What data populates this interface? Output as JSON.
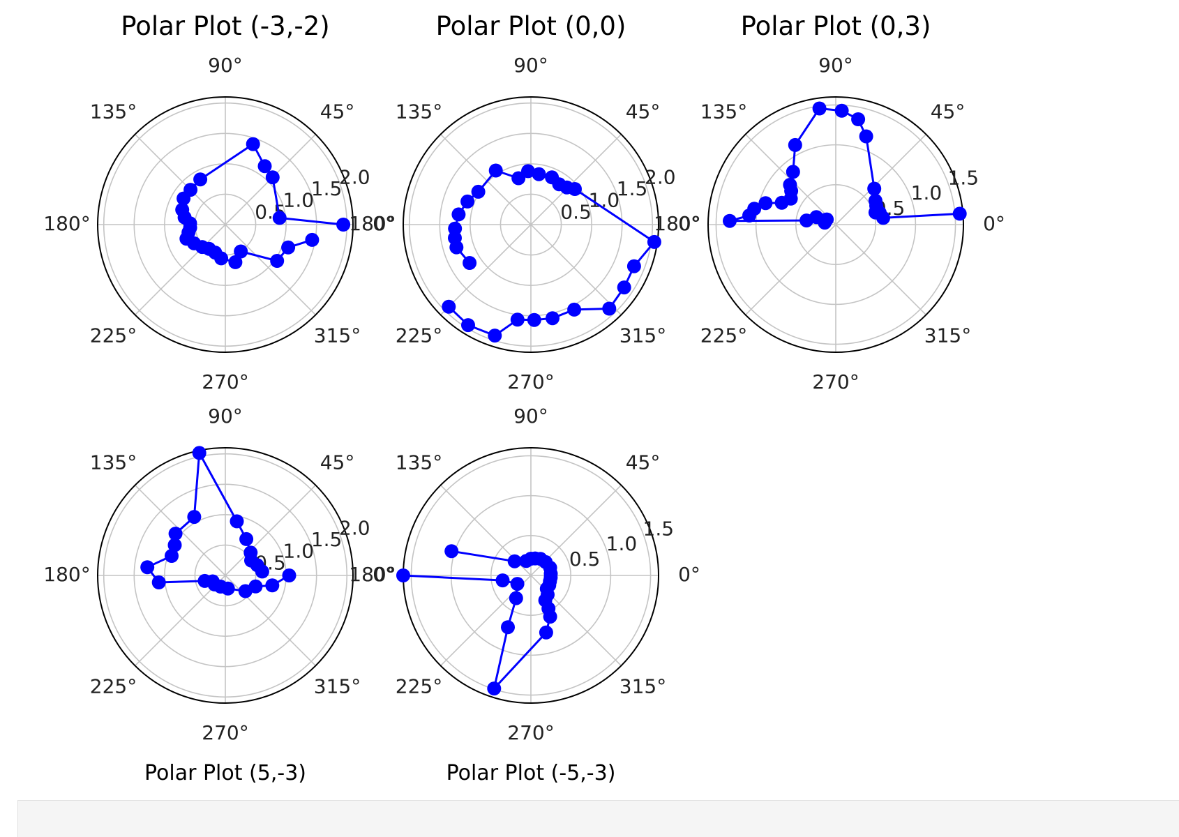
{
  "colors": {
    "series": "#0000ff",
    "grid": "#c4c4c4",
    "spine": "#000000"
  },
  "chart_data": [
    {
      "type": "scatter",
      "title": "Polar Plot (-3,-2)",
      "title_position": "top",
      "angle_ticks": [
        "0°",
        "45°",
        "90°",
        "135°",
        "180°",
        "225°",
        "270°",
        "315°"
      ],
      "radial_ticks": [
        "0.5",
        "1.0",
        "1.5",
        "2.0"
      ],
      "rlim": [
        0,
        2.1
      ],
      "points": [
        {
          "theta": 0,
          "r": 1.94
        },
        {
          "theta": 7,
          "r": 0.9
        },
        {
          "theta": 45,
          "r": 1.1
        },
        {
          "theta": 56,
          "r": 1.16
        },
        {
          "theta": 71,
          "r": 1.4
        },
        {
          "theta": 119,
          "r": 0.85
        },
        {
          "theta": 135,
          "r": 0.81
        },
        {
          "theta": 148,
          "r": 0.81
        },
        {
          "theta": 161,
          "r": 0.75
        },
        {
          "theta": 170,
          "r": 0.68
        },
        {
          "theta": 178,
          "r": 0.58
        },
        {
          "theta": 185,
          "r": 0.58
        },
        {
          "theta": 192,
          "r": 0.62
        },
        {
          "theta": 200,
          "r": 0.68
        },
        {
          "theta": 211,
          "r": 0.6
        },
        {
          "theta": 224,
          "r": 0.53
        },
        {
          "theta": 236,
          "r": 0.48
        },
        {
          "theta": 250,
          "r": 0.49
        },
        {
          "theta": 263,
          "r": 0.56
        },
        {
          "theta": 285,
          "r": 0.64
        },
        {
          "theta": 300,
          "r": 0.51
        },
        {
          "theta": 325,
          "r": 1.04
        },
        {
          "theta": 340,
          "r": 1.1
        },
        {
          "theta": 350,
          "r": 1.45
        }
      ]
    },
    {
      "type": "scatter",
      "title": "Polar Plot (0,0)",
      "title_position": "top",
      "angle_ticks": [
        "0°",
        "45°",
        "90°",
        "135°",
        "180°",
        "225°",
        "270°",
        "315°"
      ],
      "radial_ticks": [
        "0.5",
        "1.0",
        "1.5",
        "2.0"
      ],
      "rlim": [
        0,
        2.1
      ],
      "points": [
        {
          "theta": 225,
          "r": 1.91
        },
        {
          "theta": 238,
          "r": 1.95
        },
        {
          "theta": 252,
          "r": 1.92
        },
        {
          "theta": 262,
          "r": 1.58
        },
        {
          "theta": 272,
          "r": 1.57
        },
        {
          "theta": 283,
          "r": 1.58
        },
        {
          "theta": 297,
          "r": 1.57
        },
        {
          "theta": 313,
          "r": 1.89
        },
        {
          "theta": 326,
          "r": 1.85
        },
        {
          "theta": 338,
          "r": 1.83
        },
        {
          "theta": 352,
          "r": 2.05
        },
        {
          "theta": 39,
          "r": 0.93
        },
        {
          "theta": 46,
          "r": 0.85
        },
        {
          "theta": 55,
          "r": 0.81
        },
        {
          "theta": 66,
          "r": 0.85
        },
        {
          "theta": 81,
          "r": 0.84
        },
        {
          "theta": 93,
          "r": 0.88
        },
        {
          "theta": 105,
          "r": 0.79
        },
        {
          "theta": 123,
          "r": 1.06
        },
        {
          "theta": 148,
          "r": 1.02
        },
        {
          "theta": 160,
          "r": 1.11
        },
        {
          "theta": 172,
          "r": 1.2
        },
        {
          "theta": 183,
          "r": 1.25
        },
        {
          "theta": 190,
          "r": 1.27
        },
        {
          "theta": 197,
          "r": 1.28
        },
        {
          "theta": 212,
          "r": 1.19
        }
      ]
    },
    {
      "type": "scatter",
      "title": "Polar Plot (0,3)",
      "title_position": "top",
      "angle_ticks": [
        "0°",
        "45°",
        "90°",
        "135°",
        "180°",
        "225°",
        "270°",
        "315°"
      ],
      "radial_ticks": [
        "0.5",
        "1.0",
        "1.5"
      ],
      "rlim": [
        0,
        1.6
      ],
      "points": [
        {
          "theta": 5,
          "r": 1.56
        },
        {
          "theta": 8,
          "r": 0.6
        },
        {
          "theta": 15,
          "r": 0.57
        },
        {
          "theta": 17,
          "r": 0.52
        },
        {
          "theta": 25,
          "r": 0.56
        },
        {
          "theta": 31,
          "r": 0.58
        },
        {
          "theta": 43,
          "r": 0.66
        },
        {
          "theta": 71,
          "r": 1.17
        },
        {
          "theta": 78,
          "r": 1.35
        },
        {
          "theta": 87,
          "r": 1.43
        },
        {
          "theta": 98,
          "r": 1.47
        },
        {
          "theta": 117,
          "r": 1.12
        },
        {
          "theta": 129,
          "r": 0.85
        },
        {
          "theta": 139,
          "r": 0.76
        },
        {
          "theta": 143,
          "r": 0.7
        },
        {
          "theta": 150,
          "r": 0.65
        },
        {
          "theta": 158,
          "r": 0.73
        },
        {
          "theta": 163,
          "r": 0.92
        },
        {
          "theta": 169,
          "r": 1.04
        },
        {
          "theta": 174,
          "r": 1.09
        },
        {
          "theta": 178,
          "r": 1.33
        },
        {
          "theta": 172,
          "r": 0.37
        },
        {
          "theta": 159,
          "r": 0.26
        },
        {
          "theta": 150,
          "r": 0.13
        },
        {
          "theta": 160,
          "r": 0.16
        },
        {
          "theta": 170,
          "r": 0.14
        }
      ]
    },
    {
      "type": "scatter",
      "title": "Polar Plot (5,-3)",
      "title_position": "bottom",
      "angle_ticks": [
        "0°",
        "45°",
        "90°",
        "135°",
        "180°",
        "225°",
        "270°",
        "315°"
      ],
      "radial_ticks": [
        "0.5",
        "1.0",
        "1.5",
        "2.0"
      ],
      "rlim": [
        0,
        2.1
      ],
      "points": [
        {
          "theta": 0,
          "r": 1.05
        },
        {
          "theta": 348,
          "r": 0.79
        },
        {
          "theta": 340,
          "r": 0.53
        },
        {
          "theta": 322,
          "r": 0.42
        },
        {
          "theta": 281,
          "r": 0.22
        },
        {
          "theta": 247,
          "r": 0.2
        },
        {
          "theta": 220,
          "r": 0.23
        },
        {
          "theta": 205,
          "r": 0.23
        },
        {
          "theta": 195,
          "r": 0.35
        },
        {
          "theta": 186,
          "r": 1.1
        },
        {
          "theta": 174,
          "r": 1.29
        },
        {
          "theta": 160,
          "r": 0.94
        },
        {
          "theta": 149,
          "r": 0.97
        },
        {
          "theta": 140,
          "r": 1.07
        },
        {
          "theta": 118,
          "r": 1.09
        },
        {
          "theta": 102,
          "r": 2.06
        },
        {
          "theta": 78,
          "r": 0.91
        },
        {
          "theta": 60,
          "r": 0.69
        },
        {
          "theta": 42,
          "r": 0.56
        },
        {
          "theta": 30,
          "r": 0.49
        },
        {
          "theta": 18,
          "r": 0.55
        },
        {
          "theta": 6,
          "r": 0.61
        }
      ]
    },
    {
      "type": "scatter",
      "title": "Polar Plot (-5,-3)",
      "title_position": "bottom",
      "angle_ticks": [
        "0°",
        "45°",
        "90°",
        "135°",
        "180°",
        "225°",
        "270°",
        "315°"
      ],
      "radial_ticks": [
        "0.5",
        "1.0",
        "1.5"
      ],
      "rlim": [
        0,
        1.6
      ],
      "points": [
        {
          "theta": 180,
          "r": 1.6
        },
        {
          "theta": 190,
          "r": 0.36
        },
        {
          "theta": 212,
          "r": 0.2
        },
        {
          "theta": 237,
          "r": 0.34
        },
        {
          "theta": 246,
          "r": 0.71
        },
        {
          "theta": 252,
          "r": 1.49
        },
        {
          "theta": 285,
          "r": 0.74
        },
        {
          "theta": 295,
          "r": 0.57
        },
        {
          "theta": 298,
          "r": 0.47
        },
        {
          "theta": 300,
          "r": 0.36
        },
        {
          "theta": 311,
          "r": 0.32
        },
        {
          "theta": 320,
          "r": 0.26
        },
        {
          "theta": 332,
          "r": 0.26
        },
        {
          "theta": 343,
          "r": 0.25
        },
        {
          "theta": 354,
          "r": 0.25
        },
        {
          "theta": 5,
          "r": 0.25
        },
        {
          "theta": 22,
          "r": 0.26
        },
        {
          "theta": 42,
          "r": 0.25
        },
        {
          "theta": 60,
          "r": 0.24
        },
        {
          "theta": 76,
          "r": 0.22
        },
        {
          "theta": 90,
          "r": 0.21
        },
        {
          "theta": 108,
          "r": 0.19
        },
        {
          "theta": 139,
          "r": 0.27
        },
        {
          "theta": 163,
          "r": 1.04
        }
      ]
    }
  ]
}
